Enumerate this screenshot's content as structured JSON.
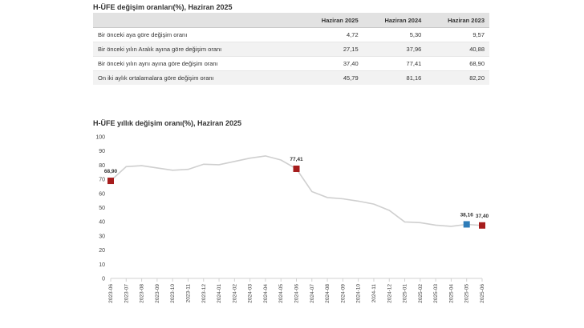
{
  "table": {
    "title": "H-ÜFE değişim oranları(%), Haziran 2025",
    "headers": [
      "",
      "Haziran 2025",
      "Haziran 2024",
      "Haziran 2023"
    ],
    "rows": [
      {
        "label": "Bir önceki aya göre değişim oranı",
        "values": [
          "4,72",
          "5,30",
          "9,57"
        ]
      },
      {
        "label": "Bir önceki yılın Aralık ayına göre değişim oranı",
        "values": [
          "27,15",
          "37,96",
          "40,88"
        ]
      },
      {
        "label": "Bir önceki yılın aynı ayına göre değişim oranı",
        "values": [
          "37,40",
          "77,41",
          "68,90"
        ]
      },
      {
        "label": "On iki aylık ortalamalara göre değişim oranı",
        "values": [
          "45,79",
          "81,16",
          "82,20"
        ]
      }
    ]
  },
  "chart_data": {
    "type": "line",
    "title": "H-ÜFE yıllık değişim oranı(%), Haziran 2025",
    "xlabel": "",
    "ylabel": "",
    "ylim": [
      0,
      100
    ],
    "yticks": [
      0,
      10,
      20,
      30,
      40,
      50,
      60,
      70,
      80,
      90,
      100
    ],
    "categories": [
      "2023-06",
      "2023-07",
      "2023-08",
      "2023-09",
      "2023-10",
      "2023-11",
      "2023-12",
      "2024-01",
      "2024-02",
      "2024-03",
      "2024-04",
      "2024-05",
      "2024-06",
      "2024-07",
      "2024-08",
      "2024-09",
      "2024-10",
      "2024-11",
      "2024-12",
      "2025-01",
      "2025-02",
      "2025-03",
      "2025-04",
      "2025-05",
      "2025-06"
    ],
    "series": [
      {
        "name": "H-ÜFE yıllık değişim oranı",
        "values": [
          68.9,
          78.9,
          79.6,
          78.0,
          76.4,
          77.0,
          80.6,
          80.3,
          82.6,
          84.9,
          86.5,
          83.6,
          77.41,
          61.3,
          57.1,
          56.2,
          54.6,
          52.5,
          48.0,
          39.9,
          39.4,
          37.6,
          36.8,
          38.16,
          37.4
        ]
      }
    ],
    "markers": [
      {
        "category": "2023-06",
        "label": "68,90",
        "color": "#a61c1c"
      },
      {
        "category": "2024-06",
        "label": "77,41",
        "color": "#a61c1c"
      },
      {
        "category": "2025-05",
        "label": "38,16",
        "color": "#2e7cb8"
      },
      {
        "category": "2025-06",
        "label": "37,40",
        "color": "#a61c1c"
      }
    ],
    "line_color": "#cfcfcf",
    "grid": false
  }
}
